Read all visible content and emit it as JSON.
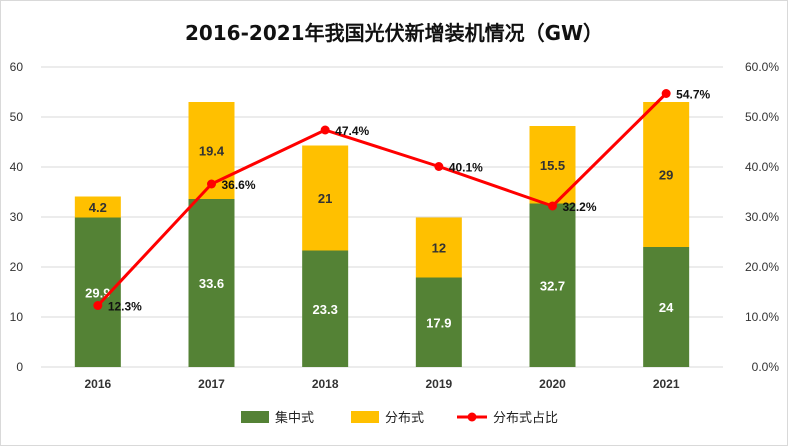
{
  "chart_data": {
    "type": "bar",
    "title": "2016-2021年我国光伏新增装机情况（GW）",
    "categories": [
      "2016",
      "2017",
      "2018",
      "2019",
      "2020",
      "2021"
    ],
    "series": [
      {
        "name": "集中式",
        "type": "bar",
        "stack": "total",
        "color": "#548235",
        "values": [
          29.9,
          33.6,
          23.3,
          17.9,
          32.7,
          24
        ]
      },
      {
        "name": "分布式",
        "type": "bar",
        "stack": "total",
        "color": "#FFC000",
        "values": [
          4.2,
          19.4,
          21,
          12,
          15.5,
          29
        ]
      },
      {
        "name": "分布式占比",
        "type": "line",
        "axis": "right",
        "color": "#FF0000",
        "values": [
          12.3,
          36.6,
          47.4,
          40.1,
          32.2,
          54.7
        ],
        "labels": [
          "12.3%",
          "36.6%",
          "47.4%",
          "40.1%",
          "32.2%",
          "54.7%"
        ]
      }
    ],
    "y_left": {
      "ylim": [
        0,
        60
      ],
      "ticks": [
        "0",
        "10",
        "20",
        "30",
        "40",
        "50",
        "60"
      ]
    },
    "y_right": {
      "ylim": [
        0,
        60
      ],
      "ticks": [
        "0.0%",
        "10.0%",
        "20.0%",
        "30.0%",
        "40.0%",
        "50.0%",
        "60.0%"
      ]
    },
    "grid": true,
    "legend_position": "bottom"
  }
}
